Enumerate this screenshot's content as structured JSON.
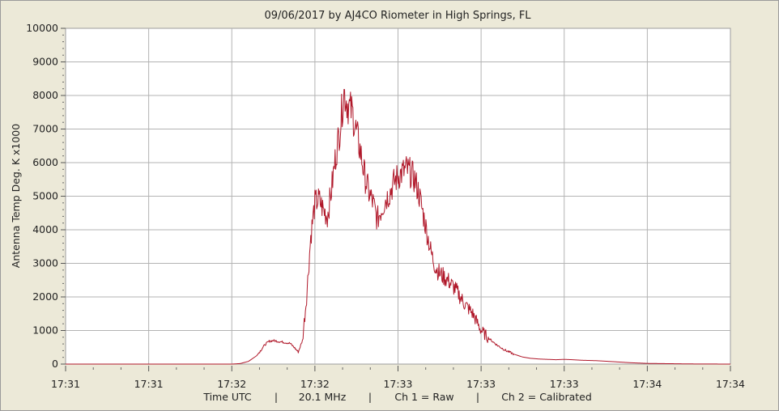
{
  "chart_data": {
    "type": "line",
    "title": "09/06/2017  by  AJ4CO Riometer  in  High Springs, FL",
    "ylabel": "Antenna Temp Deg. K x1000",
    "xlabel": "Time UTC",
    "footer": [
      "Time UTC",
      "20.1 MHz",
      "Ch 1 = Raw",
      "Ch 2 = Calibrated"
    ],
    "ylim": [
      0,
      10000
    ],
    "yticks": [
      0,
      1000,
      2000,
      3000,
      4000,
      5000,
      6000,
      7000,
      8000,
      9000,
      10000
    ],
    "xlim": [
      0,
      8
    ],
    "xtick_labels": [
      "17:31",
      "17:31",
      "17:32",
      "17:32",
      "17:33",
      "17:33",
      "17:33",
      "17:34",
      "17:34"
    ],
    "grid": true,
    "series": [
      {
        "color": "#B0182A",
        "points": [
          [
            0.0,
            0
          ],
          [
            1.5,
            0
          ],
          [
            2.0,
            0
          ],
          [
            2.1,
            15
          ],
          [
            2.2,
            80
          ],
          [
            2.3,
            250
          ],
          [
            2.4,
            580
          ],
          [
            2.45,
            680
          ],
          [
            2.5,
            700
          ],
          [
            2.6,
            660
          ],
          [
            2.65,
            640
          ],
          [
            2.7,
            620
          ],
          [
            2.75,
            500
          ],
          [
            2.8,
            360
          ],
          [
            2.85,
            700
          ],
          [
            2.9,
            2000
          ],
          [
            2.95,
            3800
          ],
          [
            3.0,
            4800
          ],
          [
            3.05,
            4900
          ],
          [
            3.1,
            4600
          ],
          [
            3.15,
            4400
          ],
          [
            3.2,
            5200
          ],
          [
            3.25,
            6200
          ],
          [
            3.3,
            7000
          ],
          [
            3.35,
            8100
          ],
          [
            3.4,
            7700
          ],
          [
            3.45,
            7500
          ],
          [
            3.5,
            6900
          ],
          [
            3.55,
            6300
          ],
          [
            3.6,
            5600
          ],
          [
            3.65,
            5100
          ],
          [
            3.7,
            4800
          ],
          [
            3.75,
            4300
          ],
          [
            3.8,
            4600
          ],
          [
            3.85,
            4900
          ],
          [
            3.9,
            5100
          ],
          [
            3.95,
            5400
          ],
          [
            4.0,
            5600
          ],
          [
            4.05,
            5700
          ],
          [
            4.1,
            5800
          ],
          [
            4.15,
            5700
          ],
          [
            4.2,
            5500
          ],
          [
            4.25,
            5100
          ],
          [
            4.3,
            4500
          ],
          [
            4.35,
            3900
          ],
          [
            4.4,
            3300
          ],
          [
            4.45,
            2900
          ],
          [
            4.5,
            2700
          ],
          [
            4.6,
            2500
          ],
          [
            4.7,
            2200
          ],
          [
            4.8,
            1800
          ],
          [
            4.9,
            1500
          ],
          [
            5.0,
            1000
          ],
          [
            5.1,
            750
          ],
          [
            5.2,
            550
          ],
          [
            5.3,
            400
          ],
          [
            5.4,
            290
          ],
          [
            5.5,
            210
          ],
          [
            5.6,
            170
          ],
          [
            5.7,
            150
          ],
          [
            5.8,
            140
          ],
          [
            5.9,
            130
          ],
          [
            6.0,
            140
          ],
          [
            6.1,
            130
          ],
          [
            6.2,
            115
          ],
          [
            6.4,
            100
          ],
          [
            6.6,
            70
          ],
          [
            6.8,
            40
          ],
          [
            7.0,
            20
          ],
          [
            7.5,
            5
          ],
          [
            8.0,
            0
          ]
        ]
      }
    ]
  }
}
